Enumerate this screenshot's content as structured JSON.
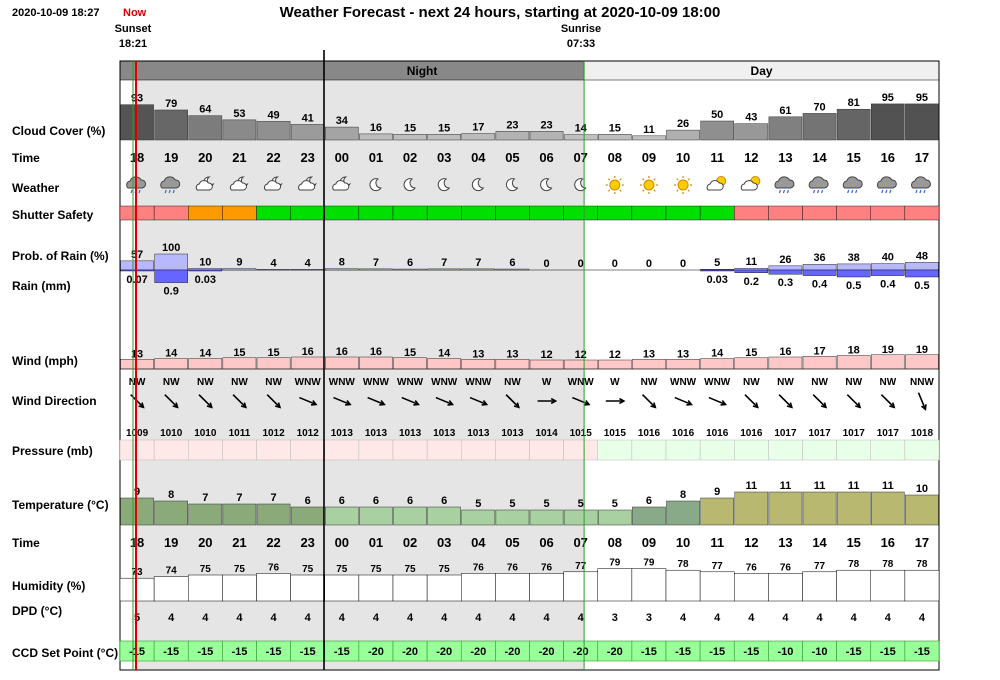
{
  "header": {
    "timestamp": "2020-10-09 18:27",
    "now_label": "Now",
    "title": "Weather Forecast - next 24 hours, starting at 2020-10-09 18:00",
    "sunset_label": "Sunset",
    "sunset_time": "18:21",
    "sunrise_label": "Sunrise",
    "sunrise_time": "07:33",
    "night_label": "Night",
    "day_label": "Day"
  },
  "labels": {
    "cloud": "Cloud Cover (%)",
    "time": "Time",
    "weather": "Weather",
    "shutter": "Shutter Safety",
    "prob": "Prob. of Rain (%)",
    "rain": "Rain (mm)",
    "wind": "Wind (mph)",
    "winddir": "Wind Direction",
    "pressure": "Pressure (mb)",
    "temp": "Temperature (°C)",
    "time2": "Time",
    "humidity": "Humidity (%)",
    "dpd": "DPD (°C)",
    "ccd": "CCD Set Point (°C)"
  },
  "colors": {
    "night_shade": "#e5e5e5",
    "night_bar": "#888888",
    "shutter_red": "#ff8080",
    "shutter_orange": "#ff9900",
    "shutter_green": "#00e000",
    "rain_bar": "#6666ff",
    "wind_bar": "#ffc8c8",
    "ccd_green": "#99ff99",
    "now_line": "#dd0000",
    "sun_line": "#339933"
  },
  "hours": [
    "18",
    "19",
    "20",
    "21",
    "22",
    "23",
    "00",
    "01",
    "02",
    "03",
    "04",
    "05",
    "06",
    "07",
    "08",
    "09",
    "10",
    "11",
    "12",
    "13",
    "14",
    "15",
    "16",
    "17"
  ],
  "cloud": [
    93,
    79,
    64,
    53,
    49,
    41,
    34,
    16,
    15,
    15,
    17,
    23,
    23,
    14,
    15,
    11,
    26,
    50,
    43,
    61,
    70,
    81,
    95,
    95
  ],
  "weather_icons": [
    "cloud-rain-icon",
    "cloud-rain-icon",
    "partly-cloudy-night-icon",
    "partly-cloudy-night-icon",
    "partly-cloudy-night-icon",
    "partly-cloudy-night-icon",
    "partly-cloudy-night-icon",
    "moon-icon",
    "moon-icon",
    "moon-icon",
    "moon-icon",
    "moon-icon",
    "moon-icon",
    "moon-icon",
    "sun-icon",
    "sun-icon",
    "sun-icon",
    "partly-cloudy-day-icon",
    "partly-cloudy-day-icon",
    "cloud-rain-icon",
    "cloud-rain-icon",
    "cloud-rain-icon",
    "cloud-rain-icon",
    "cloud-rain-icon"
  ],
  "shutter": [
    "red",
    "red",
    "orange",
    "orange",
    "green",
    "green",
    "green",
    "green",
    "green",
    "green",
    "green",
    "green",
    "green",
    "green",
    "green",
    "green",
    "green",
    "green",
    "red",
    "red",
    "red",
    "red",
    "red",
    "red"
  ],
  "prob_rain": [
    57,
    100,
    10,
    9,
    4,
    4,
    8,
    7,
    6,
    7,
    7,
    6,
    0,
    0,
    0,
    0,
    0,
    5,
    11,
    26,
    36,
    38,
    40,
    48
  ],
  "rain_mm": [
    "0.07",
    "0.9",
    "0.03",
    "",
    "",
    "",
    "",
    "",
    "",
    "",
    "",
    "",
    "",
    "",
    "",
    "",
    "",
    "0.03",
    "0.2",
    "0.3",
    "0.4",
    "0.5",
    "0.4",
    "0.5"
  ],
  "wind": [
    13,
    14,
    14,
    15,
    15,
    16,
    16,
    16,
    15,
    14,
    13,
    13,
    12,
    12,
    12,
    13,
    13,
    14,
    15,
    16,
    17,
    18,
    19,
    19
  ],
  "wind_dir": [
    "NW",
    "NW",
    "NW",
    "NW",
    "NW",
    "WNW",
    "WNW",
    "WNW",
    "WNW",
    "WNW",
    "WNW",
    "NW",
    "W",
    "WNW",
    "W",
    "NW",
    "WNW",
    "WNW",
    "NW",
    "NW",
    "NW",
    "NW",
    "NW",
    "NNW"
  ],
  "pressure": [
    1009,
    1010,
    1010,
    1011,
    1012,
    1012,
    1013,
    1013,
    1013,
    1013,
    1013,
    1013,
    1014,
    1015,
    1015,
    1016,
    1016,
    1016,
    1016,
    1017,
    1017,
    1017,
    1017,
    1018
  ],
  "temp": [
    9,
    8,
    7,
    7,
    7,
    6,
    6,
    6,
    6,
    6,
    5,
    5,
    5,
    5,
    5,
    6,
    8,
    9,
    11,
    11,
    11,
    11,
    11,
    10
  ],
  "humidity": [
    73,
    74,
    75,
    75,
    76,
    75,
    75,
    75,
    75,
    75,
    76,
    76,
    76,
    77,
    79,
    79,
    78,
    77,
    76,
    76,
    77,
    78,
    78,
    78
  ],
  "dpd": [
    5,
    4,
    4,
    4,
    4,
    4,
    4,
    4,
    4,
    4,
    4,
    4,
    4,
    4,
    3,
    3,
    4,
    4,
    4,
    4,
    4,
    4,
    4,
    4
  ],
  "ccd": [
    -15,
    -15,
    -15,
    -15,
    -15,
    -15,
    -15,
    -20,
    -20,
    -20,
    -20,
    -20,
    -20,
    -20,
    -20,
    -15,
    -15,
    -15,
    -15,
    -10,
    -10,
    -15,
    -15,
    -15
  ]
}
